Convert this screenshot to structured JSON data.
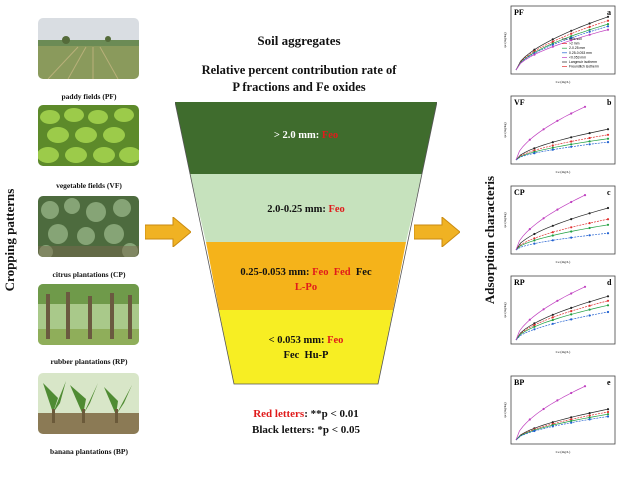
{
  "left_label": "Cropping patterns",
  "right_label": "Adsorption characteris",
  "photos": [
    {
      "caption": "paddy fields (PF)"
    },
    {
      "caption": "vegetable fields (VF)"
    },
    {
      "caption": "citrus plantations (CP)"
    },
    {
      "caption": "rubber plantations (RP)"
    },
    {
      "caption": "banana plantations (BP)"
    }
  ],
  "heading": "Soil aggregates",
  "subheading_line1": "Relative percent contribution rate of",
  "subheading_line2": "P fractions and Fe oxides",
  "layers": [
    {
      "size": "> 2.0 mm:",
      "red": [
        "Feo"
      ],
      "black": [],
      "color": "#3f6c2d"
    },
    {
      "size": "2.0-0.25 mm:",
      "red": [
        "Feo"
      ],
      "black": [],
      "color": "#c6e2bd"
    },
    {
      "size": "0.25-0.053 mm:",
      "red": [
        "Feo",
        "Fed"
      ],
      "black": [
        "Fec"
      ],
      "red2": "L-Po",
      "color": "#f5b31a"
    },
    {
      "size": "< 0.053 mm:",
      "red": [
        "Feo"
      ],
      "black_line2": [
        "Fec",
        "Hu-P"
      ],
      "color": "#f7ee23"
    }
  ],
  "legend": {
    "red_label": "Red letters",
    "red_value": ": **p < 0.01",
    "black_label": "Black letters",
    "black_value": ": *p < 0.05"
  },
  "colors": {
    "red_text": "#e01b1b",
    "arrow": "#f0b223"
  },
  "panels": [
    {
      "tag": "PF",
      "letter": "a",
      "legend": [
        "Bulk soil",
        ">2 mm",
        "2-0.25 mm",
        "0.25-0.053 mm",
        "<0.053 mm",
        "Langmuir isotherm",
        "Freundlich isotherm"
      ]
    },
    {
      "tag": "VF",
      "letter": "b"
    },
    {
      "tag": "CP",
      "letter": "c"
    },
    {
      "tag": "RP",
      "letter": "d"
    },
    {
      "tag": "BP",
      "letter": "e"
    }
  ],
  "panel_axes": {
    "y": "qe (mg/kg)",
    "x": "Ce (mg/L)"
  }
}
